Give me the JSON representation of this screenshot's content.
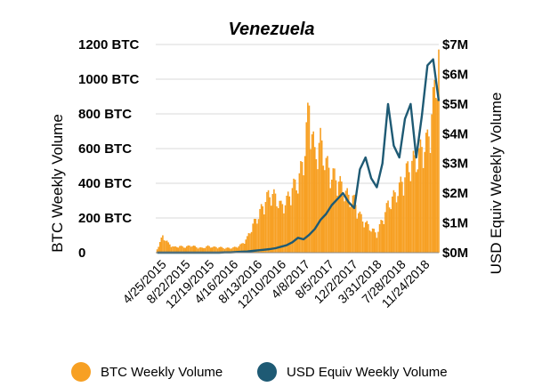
{
  "chart_data": {
    "type": "bar+line",
    "title": "Venezuela",
    "ylabel_left": "BTC Weekly Volume",
    "ylabel_right": "USD Equiv Weekly Volume",
    "yticks_left": [
      "0",
      "200 BTC",
      "400 BTC",
      "600 BTC",
      "800 BTC",
      "1000 BTC",
      "1200 BTC"
    ],
    "yticks_right": [
      "$0M",
      "$1M",
      "$2M",
      "$3M",
      "$4M",
      "$5M",
      "$6M",
      "$7M"
    ],
    "ylim_left": [
      0,
      1200
    ],
    "ylim_right": [
      0,
      7
    ],
    "x_tick_labels": [
      "4/25/2015",
      "8/22/2015",
      "12/19/2015",
      "4/16/2016",
      "8/13/2016",
      "12/10/2016",
      "4/8/2017",
      "8/5/2017",
      "12/2/2017",
      "3/31/2018",
      "7/28/2018",
      "11/24/2018"
    ],
    "x_range": [
      "2/28/2015",
      "1/5/2019"
    ],
    "bar_color": "#F7A023",
    "line_color": "#1E5A74",
    "legend_position": "bottom",
    "btc_series": {
      "name": "BTC Weekly Volume",
      "x": [
        "3/7/2015",
        "4/4/2015",
        "5/2/2015",
        "5/30/2015",
        "6/27/2015",
        "7/25/2015",
        "8/22/2015",
        "9/19/2015",
        "10/17/2015",
        "11/14/2015",
        "12/12/2015",
        "1/9/2016",
        "2/6/2016",
        "3/5/2016",
        "4/2/2016",
        "4/30/2016",
        "5/28/2016",
        "6/25/2016",
        "7/23/2016",
        "8/20/2016",
        "9/17/2016",
        "10/15/2016",
        "11/12/2016",
        "12/10/2016",
        "1/7/2017",
        "2/4/2017",
        "3/4/2017",
        "4/1/2017",
        "4/29/2017",
        "5/27/2017",
        "6/24/2017",
        "7/22/2017",
        "8/19/2017",
        "9/16/2017",
        "10/14/2017",
        "11/11/2017",
        "12/9/2017",
        "1/6/2018",
        "2/3/2018",
        "3/3/2018",
        "3/31/2018",
        "4/28/2018",
        "5/26/2018",
        "6/23/2018",
        "7/21/2018",
        "8/18/2018",
        "9/15/2018",
        "10/13/2018",
        "11/10/2018",
        "12/8/2018",
        "1/5/2019"
      ],
      "values": [
        20,
        90,
        50,
        30,
        35,
        30,
        40,
        30,
        25,
        35,
        30,
        30,
        25,
        25,
        30,
        45,
        80,
        150,
        200,
        270,
        320,
        300,
        250,
        280,
        350,
        380,
        500,
        800,
        520,
        600,
        480,
        420,
        400,
        340,
        300,
        280,
        200,
        160,
        130,
        100,
        180,
        260,
        300,
        350,
        420,
        480,
        500,
        560,
        600,
        800,
        1050
      ]
    },
    "usd_series": {
      "name": "USD Equiv Weekly Volume",
      "x": [
        "3/7/2015",
        "4/4/2015",
        "5/2/2015",
        "5/30/2015",
        "6/27/2015",
        "7/25/2015",
        "8/22/2015",
        "9/19/2015",
        "10/17/2015",
        "11/14/2015",
        "12/12/2015",
        "1/9/2016",
        "2/6/2016",
        "3/5/2016",
        "4/2/2016",
        "4/30/2016",
        "5/28/2016",
        "6/25/2016",
        "7/23/2016",
        "8/20/2016",
        "9/17/2016",
        "10/15/2016",
        "11/12/2016",
        "12/10/2016",
        "1/7/2017",
        "2/4/2017",
        "3/4/2017",
        "4/1/2017",
        "4/29/2017",
        "5/27/2017",
        "6/24/2017",
        "7/22/2017",
        "8/19/2017",
        "9/16/2017",
        "10/14/2017",
        "11/11/2017",
        "12/9/2017",
        "1/6/2018",
        "2/3/2018",
        "3/3/2018",
        "3/31/2018",
        "4/28/2018",
        "5/26/2018",
        "6/23/2018",
        "7/21/2018",
        "8/18/2018",
        "9/15/2018",
        "10/13/2018",
        "11/10/2018",
        "12/8/2018",
        "1/5/2019"
      ],
      "values": [
        0,
        0,
        0,
        0,
        0,
        0,
        0,
        0,
        0,
        0,
        0,
        0,
        0.01,
        0.01,
        0.02,
        0.03,
        0.04,
        0.06,
        0.08,
        0.1,
        0.12,
        0.15,
        0.2,
        0.25,
        0.35,
        0.5,
        0.45,
        0.6,
        0.8,
        1.1,
        1.3,
        1.6,
        1.8,
        2.0,
        1.7,
        1.5,
        2.8,
        3.2,
        2.5,
        2.2,
        3.0,
        5.0,
        3.6,
        3.2,
        4.5,
        5.0,
        3.2,
        4.6,
        6.3,
        6.5,
        5.1
      ]
    }
  },
  "legend": {
    "btc_label": "BTC Weekly Volume",
    "usd_label": "USD Equiv Weekly Volume"
  }
}
